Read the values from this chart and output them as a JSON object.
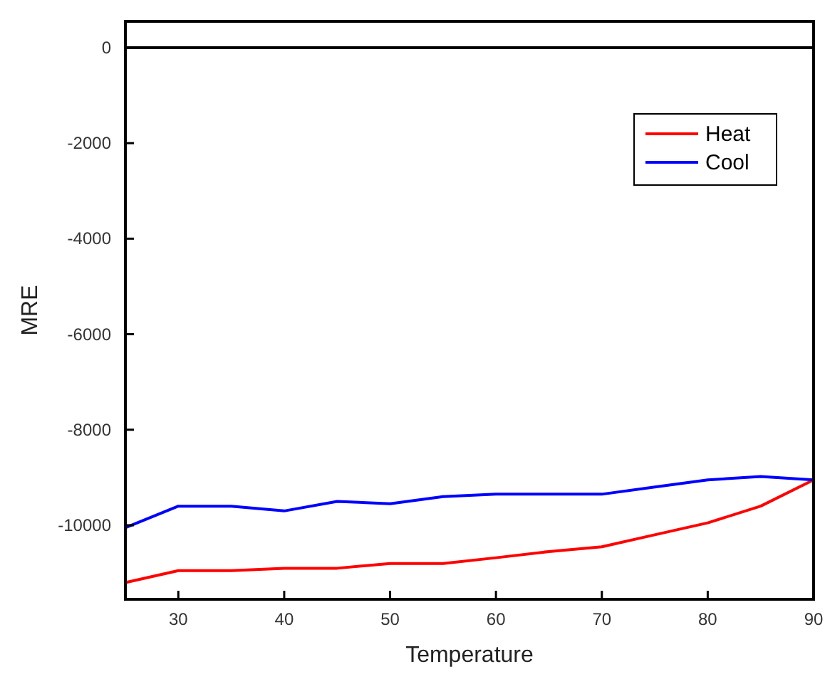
{
  "chart_data": {
    "type": "line",
    "xlabel": "Temperature",
    "ylabel": "MRE",
    "x": [
      25,
      30,
      35,
      40,
      45,
      50,
      55,
      60,
      65,
      70,
      75,
      80,
      85,
      90
    ],
    "series": [
      {
        "name": "Heat",
        "color": "#ff0000",
        "values": [
          -11200,
          -10950,
          -10950,
          -10900,
          -10900,
          -10800,
          -10800,
          -10680,
          -10550,
          -10450,
          -10200,
          -9950,
          -9600,
          -9050
        ]
      },
      {
        "name": "Cool",
        "color": "#0000ff",
        "values": [
          -10050,
          -9600,
          -9600,
          -9700,
          -9500,
          -9550,
          -9400,
          -9350,
          -9350,
          -9350,
          -9200,
          -9050,
          -8980,
          -9050
        ]
      }
    ],
    "xlim": [
      25,
      90
    ],
    "xticks": [
      30,
      40,
      50,
      60,
      70,
      80,
      90
    ],
    "ylim": [
      -11550,
      550
    ],
    "yticks": [
      -10000,
      -8000,
      -6000,
      -4000,
      -2000,
      0
    ],
    "ref_lines": [
      {
        "axis": "y",
        "value": 0,
        "color": "#000000"
      }
    ],
    "legend": "top right",
    "grid": false,
    "line_style": "solid",
    "marker": "none"
  }
}
